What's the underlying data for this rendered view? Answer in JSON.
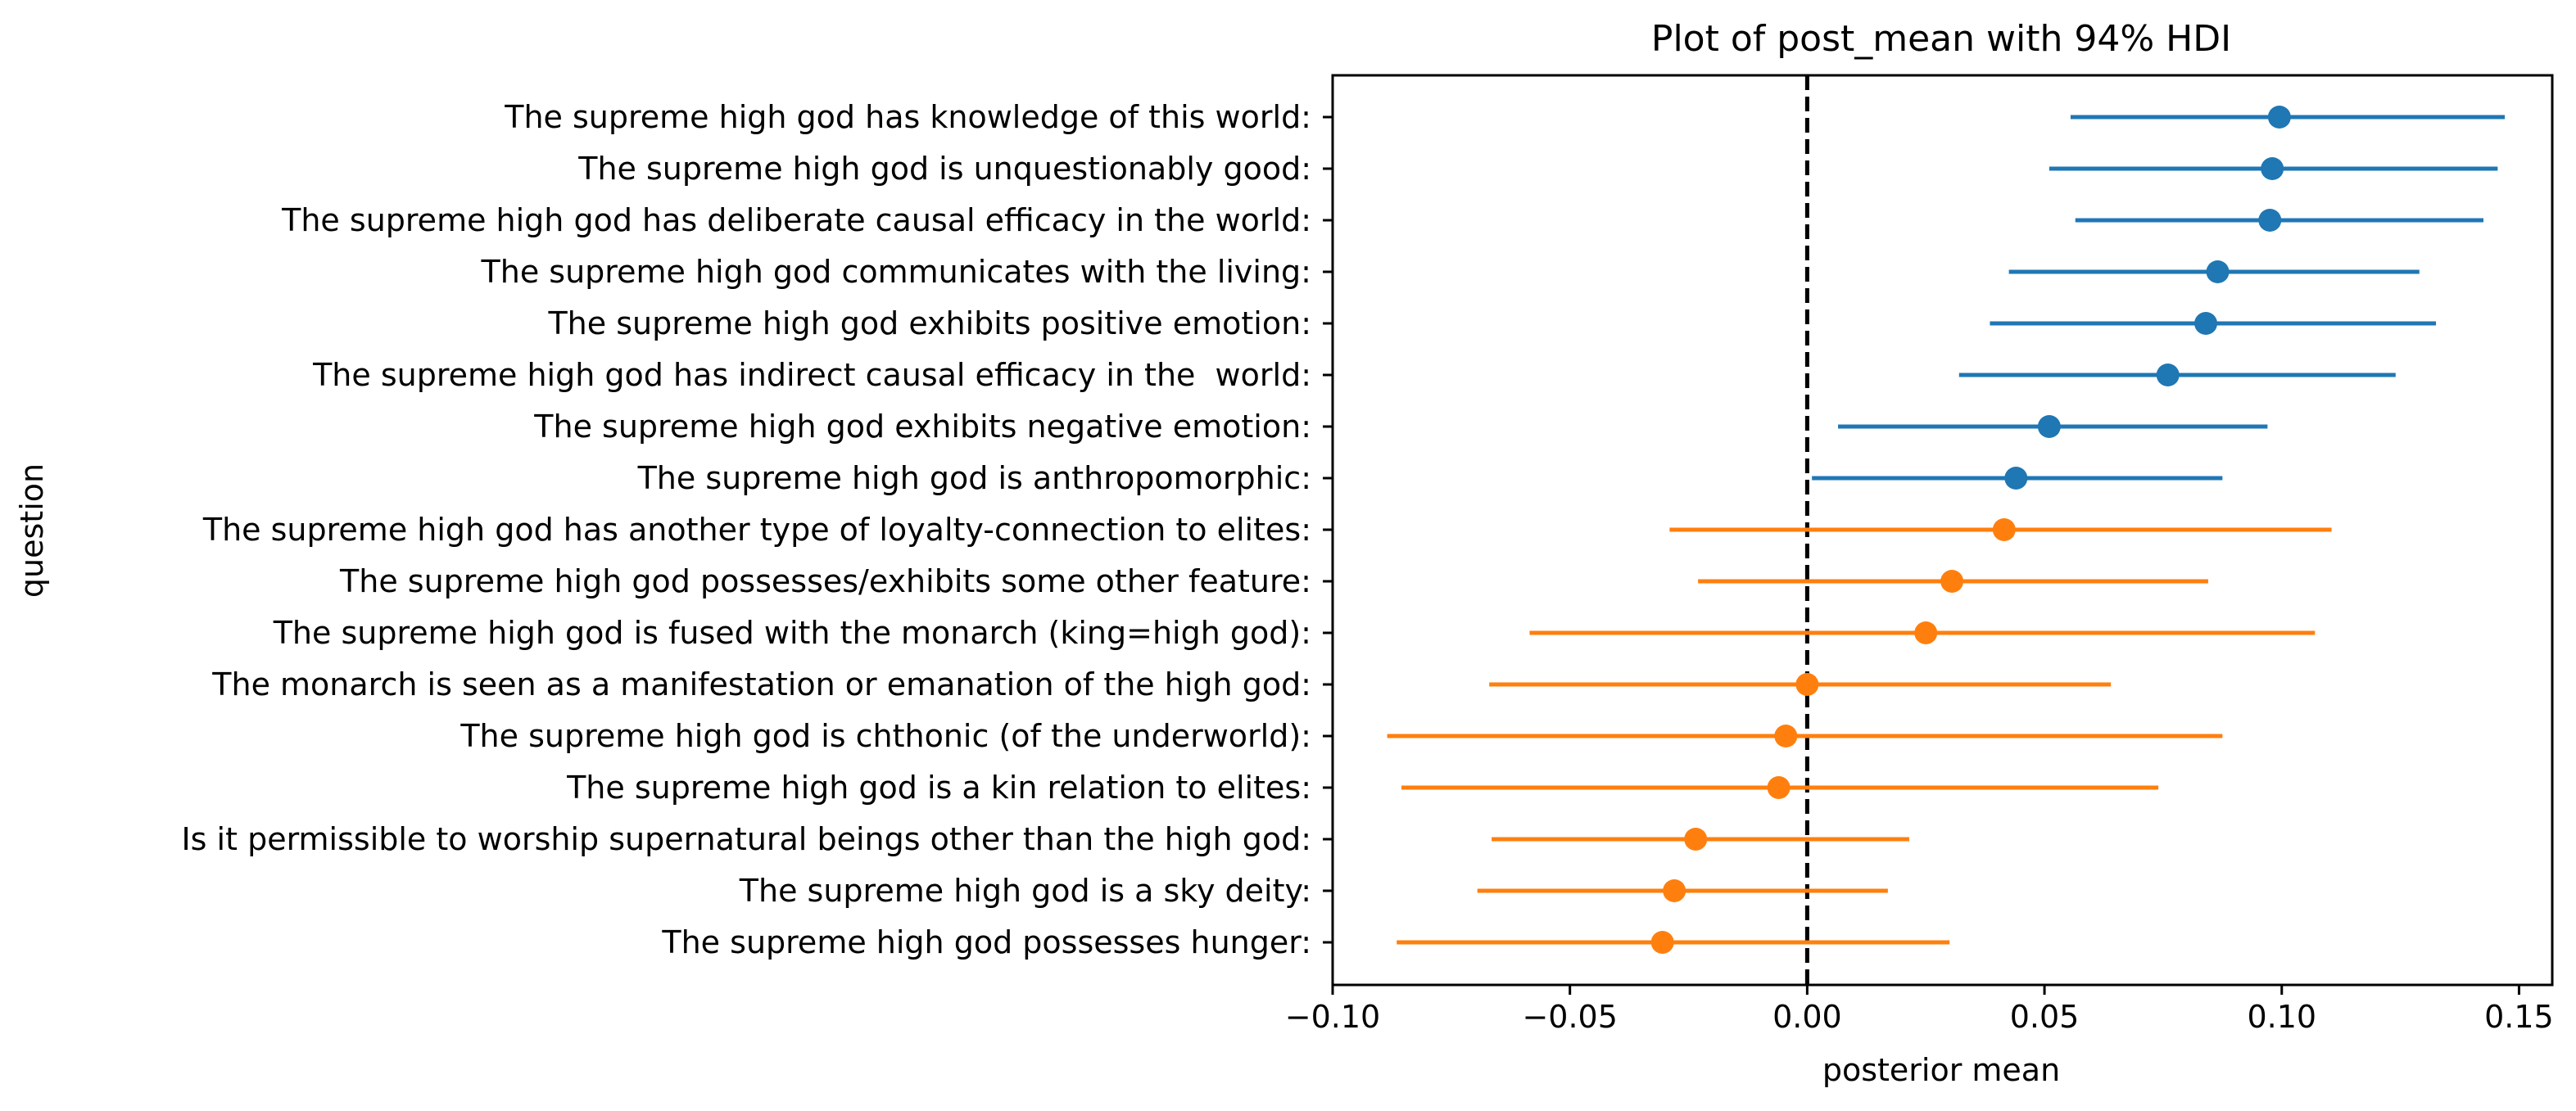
{
  "chart_data": {
    "type": "scatter",
    "title": "Plot of post_mean with 94% HDI",
    "xlabel": "posterior mean",
    "ylabel": "question",
    "xlim": [
      -0.1,
      0.157
    ],
    "xticks": [
      -0.1,
      -0.05,
      0.0,
      0.05,
      0.1,
      0.15
    ],
    "xtick_labels": [
      "−0.10",
      "−0.05",
      "0.00",
      "0.05",
      "0.10",
      "0.15"
    ],
    "reference_line": {
      "x": 0.0,
      "style": "dashed",
      "color": "#000000"
    },
    "grid": false,
    "colors": {
      "group_1": "#1f77b4",
      "group_2": "#ff7f0e"
    },
    "points": [
      {
        "question": "The supreme high god has knowledge of this world:",
        "mean": 0.0995,
        "hdi_low": 0.0555,
        "hdi_high": 0.147,
        "group": "group_1"
      },
      {
        "question": "The supreme high god is unquestionably good:",
        "mean": 0.098,
        "hdi_low": 0.051,
        "hdi_high": 0.1455,
        "group": "group_1"
      },
      {
        "question": "The supreme high god has deliberate causal efficacy in the world:",
        "mean": 0.0975,
        "hdi_low": 0.0565,
        "hdi_high": 0.1425,
        "group": "group_1"
      },
      {
        "question": "The supreme high god communicates with the living:",
        "mean": 0.0865,
        "hdi_low": 0.0425,
        "hdi_high": 0.129,
        "group": "group_1"
      },
      {
        "question": "The supreme high god exhibits positive emotion:",
        "mean": 0.084,
        "hdi_low": 0.0385,
        "hdi_high": 0.1325,
        "group": "group_1"
      },
      {
        "question": "The supreme high god has indirect causal efficacy in the  world:",
        "mean": 0.076,
        "hdi_low": 0.032,
        "hdi_high": 0.124,
        "group": "group_1"
      },
      {
        "question": "The supreme high god exhibits negative emotion:",
        "mean": 0.051,
        "hdi_low": 0.0065,
        "hdi_high": 0.097,
        "group": "group_1"
      },
      {
        "question": "The supreme high god is anthropomorphic:",
        "mean": 0.044,
        "hdi_low": 0.001,
        "hdi_high": 0.0875,
        "group": "group_1"
      },
      {
        "question": "The supreme high god has another type of loyalty-connection to elites:",
        "mean": 0.0415,
        "hdi_low": -0.029,
        "hdi_high": 0.1105,
        "group": "group_2"
      },
      {
        "question": "The supreme high god possesses/exhibits some other feature:",
        "mean": 0.0305,
        "hdi_low": -0.023,
        "hdi_high": 0.0845,
        "group": "group_2"
      },
      {
        "question": "The supreme high god is fused with the monarch (king=high god):",
        "mean": 0.025,
        "hdi_low": -0.0585,
        "hdi_high": 0.107,
        "group": "group_2"
      },
      {
        "question": "The monarch is seen as a manifestation or emanation of the high god:",
        "mean": 0.0,
        "hdi_low": -0.067,
        "hdi_high": 0.064,
        "group": "group_2"
      },
      {
        "question": "The supreme high god is chthonic (of the underworld):",
        "mean": -0.0045,
        "hdi_low": -0.0885,
        "hdi_high": 0.0875,
        "group": "group_2"
      },
      {
        "question": "The supreme high god is a kin relation to elites:",
        "mean": -0.006,
        "hdi_low": -0.0855,
        "hdi_high": 0.074,
        "group": "group_2"
      },
      {
        "question": "Is it permissible to worship supernatural beings other than the high god:",
        "mean": -0.0235,
        "hdi_low": -0.0665,
        "hdi_high": 0.0215,
        "group": "group_2"
      },
      {
        "question": "The supreme high god is a sky deity:",
        "mean": -0.028,
        "hdi_low": -0.0695,
        "hdi_high": 0.017,
        "group": "group_2"
      },
      {
        "question": "The supreme high god possesses hunger:",
        "mean": -0.0305,
        "hdi_low": -0.0865,
        "hdi_high": 0.03,
        "group": "group_2"
      }
    ]
  }
}
